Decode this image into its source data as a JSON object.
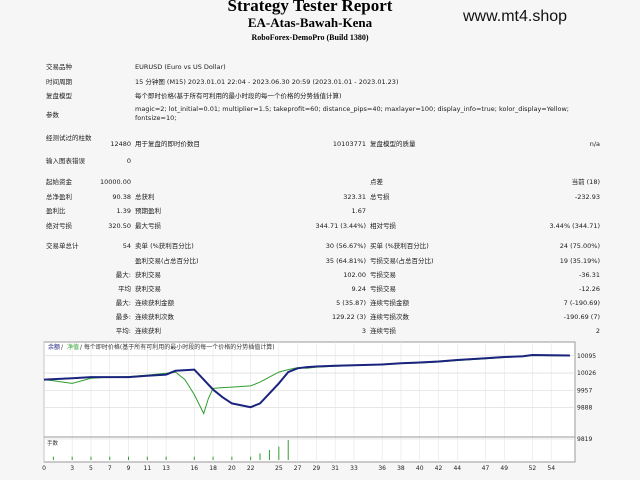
{
  "header": {
    "title": "Strategy Tester Report",
    "ea_name": "EA-Atas-Bawah-Kena",
    "server_build": "RoboForex-DemoPro (Build 1380)",
    "watermark": "www.mt4.shop"
  },
  "settings": {
    "symbol_label": "交易品种",
    "symbol_value": "EURUSD (Euro vs US Dollar)",
    "period_label": "时间周期",
    "period_value": "15 分钟图 (M15) 2023.01.01 22:04 - 2023.06.30 20:59 (2023.01.01 - 2023.01.23)",
    "model_label": "复盘模型",
    "model_value": "每个即时价格(基于所有可利用的最小时段的每一个价格的分势插值计算)",
    "params_label": "参数",
    "params_value_1": "magic=2; lot_initial=0.01; multiplier=1.5; takeprofit=60; distance_pips=40; maxlayer=100; display_info=true; kolor_display=Yellow;",
    "params_value_2": "fontsize=10;"
  },
  "stats1": {
    "bars_label": "经测试过的柱数",
    "bars_value": "12480",
    "ticks_label": "用于复盘的即时价数目",
    "ticks_value": "10103771",
    "quality_label": "复盘模型的质量",
    "quality_value": "n/a",
    "errors_label": "输入图表错误",
    "errors_value": "0"
  },
  "stats2": {
    "deposit_label": "起始资金",
    "deposit_value": "10000.00",
    "spread_label": "点差",
    "spread_value": "当前 (18)",
    "net_label": "总净盈利",
    "net_value": "90.38",
    "gross_profit_label": "总获利",
    "gross_profit_value": "323.31",
    "gross_loss_label": "总亏损",
    "gross_loss_value": "-232.93",
    "pf_label": "盈利比",
    "pf_value": "1.39",
    "expected_label": "预期盈利",
    "expected_value": "1.67",
    "abs_dd_label": "绝对亏损",
    "abs_dd_value": "320.50",
    "max_dd_label": "最大亏损",
    "max_dd_value": "344.71 (3.44%)",
    "rel_dd_label": "相对亏损",
    "rel_dd_value": "3.44% (344.71)"
  },
  "stats3": {
    "total_label": "交易单总计",
    "total_value": "54",
    "short_label": "卖单 (%获利百分比)",
    "short_value": "30 (56.67%)",
    "long_label": "买单 (%获利百分比)",
    "long_value": "24 (75.00%)",
    "win_label": "盈利交易(占总百分比)",
    "win_value": "35 (64.81%)",
    "loss_label": "亏损交易(占总百分比)",
    "loss_value": "19 (35.19%)",
    "max_label": "最大:",
    "max_win_label": "获利交易",
    "max_win_value": "102.00",
    "max_loss_label": "亏损交易",
    "max_loss_value": "-36.31",
    "avg_label": "平均",
    "avg_win_label": "获利交易",
    "avg_win_value": "9.24",
    "avg_loss_label": "亏损交易",
    "avg_loss_value": "-12.26",
    "maxc_label": "最大:",
    "maxc_win_label": "连续获利金额",
    "maxc_win_value": "5 (35.87)",
    "maxc_loss_label": "连续亏损金额",
    "maxc_loss_value": "7 (-190.69)",
    "most_label": "最多:",
    "most_win_label": "连续获利次数",
    "most_win_value": "129.22 (3)",
    "most_loss_label": "连续亏损次数",
    "most_loss_value": "-190.69 (7)",
    "avgc_label": "平均:",
    "avgc_win_label": "连续获利",
    "avgc_win_value": "3",
    "avgc_loss_label": "连续亏损",
    "avgc_loss_value": "2"
  },
  "chart": {
    "legend_balance": "余额",
    "legend_sep": " / ",
    "legend_equity": "净值",
    "legend_rest": " / 每个即时价格(基于所有可利用的最小时段的每一个价格的分势插值计算)",
    "hist_label": "手数",
    "colors": {
      "balance": "#1a237e",
      "equity": "#2e9e2e",
      "hist": "#2e9e2e"
    }
  },
  "chart_data": {
    "type": "line",
    "title": "",
    "x_ticks": [
      0,
      3,
      5,
      7,
      9,
      11,
      13,
      16,
      18,
      20,
      22,
      25,
      27,
      29,
      31,
      33,
      36,
      38,
      40,
      42,
      44,
      47,
      49,
      52,
      54
    ],
    "y_ticks": [
      10095,
      10026,
      9957,
      9888,
      9819
    ],
    "ylim": [
      9819,
      10110
    ],
    "xlim": [
      0,
      56
    ],
    "series": [
      {
        "name": "余额",
        "x": [
          0,
          3,
          5,
          7,
          9,
          11,
          13,
          14,
          16,
          17,
          18,
          19,
          20,
          22,
          23,
          24,
          25,
          26,
          27,
          28,
          29,
          31,
          33,
          36,
          38,
          40,
          42,
          44,
          47,
          49,
          51,
          52,
          54,
          56
        ],
        "y": [
          10000,
          10005,
          10010,
          10010,
          10010,
          10015,
          10020,
          10035,
          10040,
          10000,
          9960,
          9930,
          9905,
          9890,
          9905,
          9945,
          9985,
          10030,
          10045,
          10050,
          10052,
          10055,
          10057,
          10060,
          10065,
          10068,
          10072,
          10078,
          10085,
          10090,
          10093,
          10098,
          10097,
          10096
        ]
      },
      {
        "name": "净值",
        "x": [
          0,
          1,
          2,
          3,
          5,
          7,
          9,
          11,
          13,
          14,
          15,
          16,
          17,
          17.5,
          18,
          19,
          20,
          22,
          23,
          24,
          25,
          26,
          27,
          28,
          29,
          31,
          33,
          36,
          38,
          40,
          42,
          44,
          47,
          49,
          51,
          52,
          54,
          56
        ],
        "y": [
          10000,
          9995,
          9990,
          9985,
          10005,
          10010,
          10012,
          10018,
          10025,
          10030,
          10000,
          9940,
          9865,
          9925,
          9965,
          9968,
          9970,
          9975,
          9990,
          10010,
          10030,
          10040,
          10048,
          10045,
          10050,
          10053,
          10056,
          10060,
          10064,
          10066,
          10070,
          10076,
          10083,
          10088,
          10092,
          10096,
          10095,
          10095
        ]
      }
    ],
    "histogram": {
      "x": [
        1,
        3,
        5,
        7,
        9,
        11,
        13,
        16,
        18,
        20,
        22,
        23,
        24,
        25,
        26
      ],
      "v": [
        1,
        1,
        1,
        1,
        1,
        1,
        1,
        1,
        1,
        1,
        1,
        2,
        3,
        4,
        6
      ]
    }
  }
}
